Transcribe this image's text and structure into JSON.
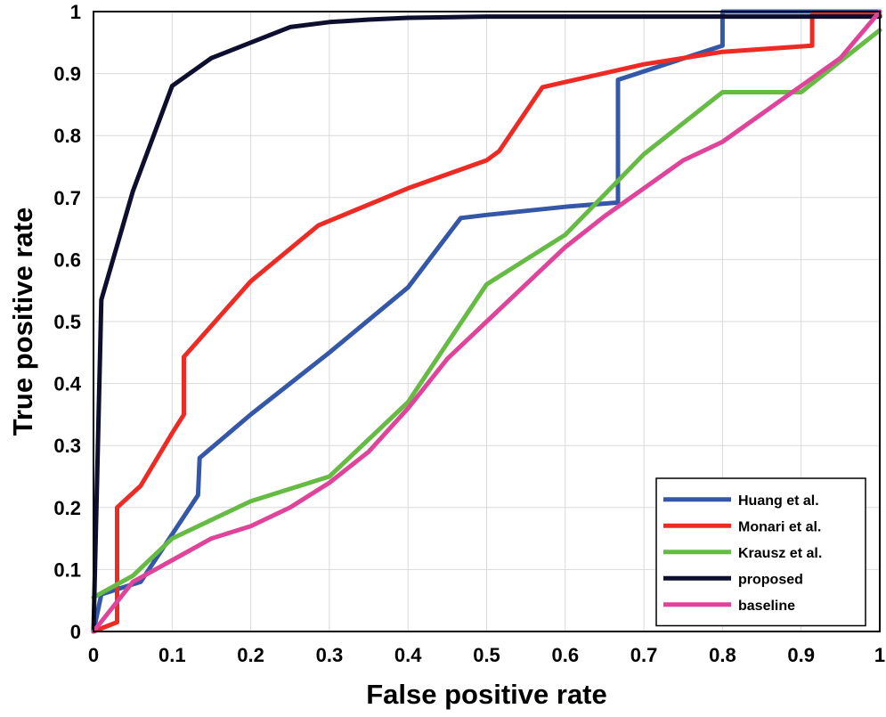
{
  "chart_data": {
    "type": "line",
    "title": "",
    "xlabel": "False positive rate",
    "ylabel": "True positive rate",
    "xlim": [
      0,
      1
    ],
    "ylim": [
      0,
      1
    ],
    "grid": true,
    "legend_position": "bottom-right",
    "x_ticks": [
      "0",
      "0.1",
      "0.2",
      "0.3",
      "0.4",
      "0.5",
      "0.6",
      "0.7",
      "0.8",
      "0.9",
      "1"
    ],
    "y_ticks": [
      "0",
      "0.1",
      "0.2",
      "0.3",
      "0.4",
      "0.5",
      "0.6",
      "0.7",
      "0.8",
      "0.9",
      "1"
    ],
    "series": [
      {
        "name": "Huang et al.",
        "color": "#3557a7",
        "points": [
          [
            0,
            0
          ],
          [
            0.01,
            0.06
          ],
          [
            0.06,
            0.08
          ],
          [
            0.133,
            0.22
          ],
          [
            0.135,
            0.28
          ],
          [
            0.2,
            0.35
          ],
          [
            0.3,
            0.45
          ],
          [
            0.4,
            0.555
          ],
          [
            0.467,
            0.667
          ],
          [
            0.5,
            0.672
          ],
          [
            0.6,
            0.685
          ],
          [
            0.667,
            0.692
          ],
          [
            0.667,
            0.89
          ],
          [
            0.8,
            0.945
          ],
          [
            0.8,
            1.0
          ],
          [
            1.0,
            1.0
          ]
        ]
      },
      {
        "name": "Monari et al.",
        "color": "#ee2a24",
        "points": [
          [
            0,
            0
          ],
          [
            0.03,
            0.015
          ],
          [
            0.03,
            0.2
          ],
          [
            0.06,
            0.235
          ],
          [
            0.1,
            0.32
          ],
          [
            0.115,
            0.35
          ],
          [
            0.115,
            0.443
          ],
          [
            0.2,
            0.565
          ],
          [
            0.286,
            0.655
          ],
          [
            0.4,
            0.715
          ],
          [
            0.5,
            0.76
          ],
          [
            0.516,
            0.775
          ],
          [
            0.571,
            0.878
          ],
          [
            0.7,
            0.915
          ],
          [
            0.8,
            0.935
          ],
          [
            0.914,
            0.945
          ],
          [
            0.914,
            0.995
          ],
          [
            1.0,
            0.995
          ]
        ]
      },
      {
        "name": "Krausz et al.",
        "color": "#66bb44",
        "points": [
          [
            0,
            0.055
          ],
          [
            0.05,
            0.09
          ],
          [
            0.1,
            0.15
          ],
          [
            0.2,
            0.21
          ],
          [
            0.3,
            0.25
          ],
          [
            0.4,
            0.37
          ],
          [
            0.5,
            0.56
          ],
          [
            0.6,
            0.64
          ],
          [
            0.7,
            0.77
          ],
          [
            0.8,
            0.87
          ],
          [
            0.9,
            0.87
          ],
          [
            1.0,
            0.97
          ]
        ]
      },
      {
        "name": "proposed",
        "color": "#0e0f2e",
        "points": [
          [
            0,
            0
          ],
          [
            0.01,
            0.535
          ],
          [
            0.05,
            0.71
          ],
          [
            0.1,
            0.88
          ],
          [
            0.15,
            0.925
          ],
          [
            0.2,
            0.95
          ],
          [
            0.25,
            0.975
          ],
          [
            0.3,
            0.983
          ],
          [
            0.35,
            0.987
          ],
          [
            0.4,
            0.99
          ],
          [
            0.5,
            0.992
          ],
          [
            1.0,
            0.992
          ]
        ]
      },
      {
        "name": "baseline",
        "color": "#e0449a",
        "points": [
          [
            0,
            0
          ],
          [
            0.05,
            0.08
          ],
          [
            0.1,
            0.115
          ],
          [
            0.15,
            0.15
          ],
          [
            0.2,
            0.17
          ],
          [
            0.25,
            0.2
          ],
          [
            0.3,
            0.24
          ],
          [
            0.35,
            0.29
          ],
          [
            0.4,
            0.36
          ],
          [
            0.45,
            0.44
          ],
          [
            0.5,
            0.5
          ],
          [
            0.55,
            0.56
          ],
          [
            0.6,
            0.62
          ],
          [
            0.65,
            0.67
          ],
          [
            0.7,
            0.715
          ],
          [
            0.75,
            0.76
          ],
          [
            0.8,
            0.79
          ],
          [
            0.85,
            0.835
          ],
          [
            0.9,
            0.88
          ],
          [
            0.95,
            0.925
          ],
          [
            1.0,
            1.0
          ]
        ]
      }
    ]
  }
}
